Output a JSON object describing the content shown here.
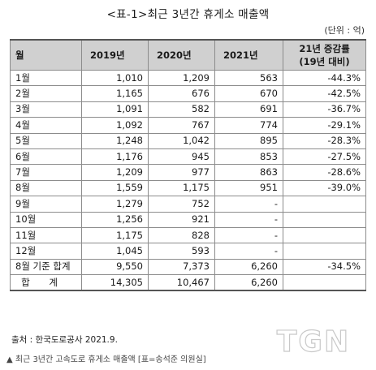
{
  "title": "<표-1>최근 3년간 휴게소 매출액",
  "unit": "(단위 : 억)",
  "headers": {
    "month": "월",
    "y2019": "2019년",
    "y2020": "2020년",
    "y2021": "2021년",
    "change_line1": "21년 증감률",
    "change_line2": "(19년 대비)"
  },
  "rows": [
    {
      "month": "1월",
      "y2019": "1,010",
      "y2020": "1,209",
      "y2021": "563",
      "change": "-44.3%"
    },
    {
      "month": "2월",
      "y2019": "1,165",
      "y2020": "676",
      "y2021": "670",
      "change": "-42.5%"
    },
    {
      "month": "3월",
      "y2019": "1,091",
      "y2020": "582",
      "y2021": "691",
      "change": "-36.7%"
    },
    {
      "month": "4월",
      "y2019": "1,092",
      "y2020": "767",
      "y2021": "774",
      "change": "-29.1%"
    },
    {
      "month": "5월",
      "y2019": "1,248",
      "y2020": "1,042",
      "y2021": "895",
      "change": "-28.3%"
    },
    {
      "month": "6월",
      "y2019": "1,176",
      "y2020": "945",
      "y2021": "853",
      "change": "-27.5%"
    },
    {
      "month": "7월",
      "y2019": "1,209",
      "y2020": "977",
      "y2021": "863",
      "change": "-28.6%"
    },
    {
      "month": "8월",
      "y2019": "1,559",
      "y2020": "1,175",
      "y2021": "951",
      "change": "-39.0%"
    },
    {
      "month": "9월",
      "y2019": "1,279",
      "y2020": "752",
      "y2021": "-",
      "change": ""
    },
    {
      "month": "10월",
      "y2019": "1,256",
      "y2020": "921",
      "y2021": "-",
      "change": ""
    },
    {
      "month": "11월",
      "y2019": "1,175",
      "y2020": "828",
      "y2021": "-",
      "change": ""
    },
    {
      "month": "12월",
      "y2019": "1,045",
      "y2020": "593",
      "y2021": "-",
      "change": ""
    },
    {
      "month": "8월 기준 합계",
      "y2019": "9,550",
      "y2020": "7,373",
      "y2021": "6,260",
      "change": "-34.5%"
    }
  ],
  "total": {
    "label": "합 계",
    "y2019": "14,305",
    "y2020": "10,467",
    "y2021": "6,260",
    "change": ""
  },
  "source": "출처 : 한국도로공사  2021.9.",
  "caption": "▲ 최근 3년간 고속도로 휴게소 매출액 [표=송석준 의원실]",
  "watermark": "TGN"
}
